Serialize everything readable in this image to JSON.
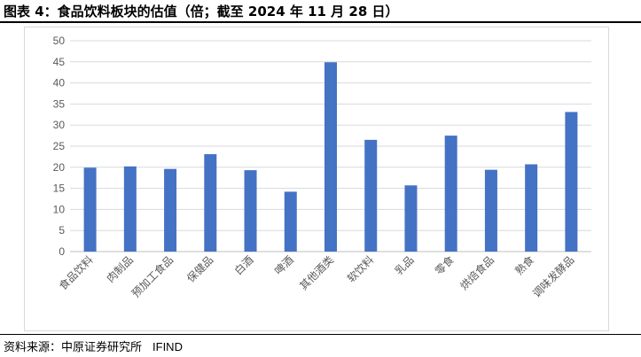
{
  "figure": {
    "title": "图表 4：食品饮料板块的估值（倍；截至 2024 年 11 月 28 日）",
    "source_label": "资料来源：中原证券研究所",
    "source_brand": "IFIND"
  },
  "colors": {
    "bar": "#4472C4",
    "grid": "#d9d9d9",
    "axis_text": "#595959"
  },
  "chart_data": {
    "type": "bar",
    "title": "",
    "xlabel": "",
    "ylabel": "",
    "ylim": [
      0,
      50
    ],
    "yticks": [
      0,
      5,
      10,
      15,
      20,
      25,
      30,
      35,
      40,
      45,
      50
    ],
    "grid": true,
    "categories": [
      "食品饮料",
      "肉制品",
      "预加工食品",
      "保健品",
      "白酒",
      "啤酒",
      "其他酒类",
      "软饮料",
      "乳品",
      "零食",
      "烘焙食品",
      "熟食",
      "调味发酵品"
    ],
    "values": [
      19.9,
      20.2,
      19.6,
      23.1,
      19.3,
      14.2,
      44.9,
      26.5,
      15.7,
      27.5,
      19.4,
      20.7,
      33.1
    ]
  }
}
